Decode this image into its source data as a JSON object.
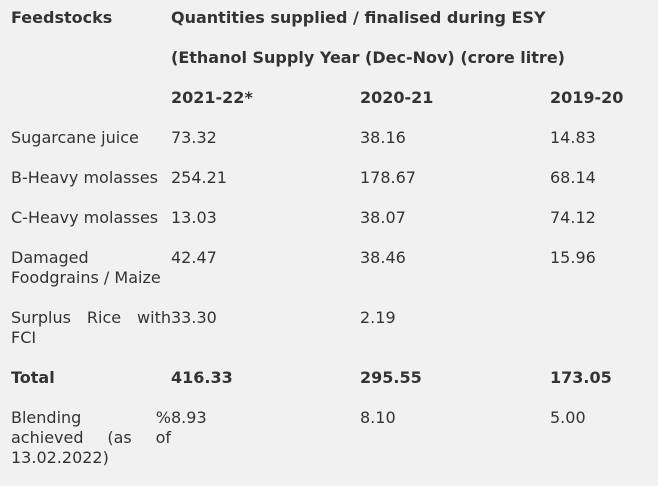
{
  "header": {
    "label": "Feedstocks",
    "title": "Quantities supplied / finalised during ESY",
    "subtitle": "(Ethanol Supply Year (Dec-Nov) (crore litre)",
    "years": [
      "2021-22*",
      "2020-21",
      "2019-20"
    ]
  },
  "table": {
    "rows": [
      [
        "Sugarcane juice",
        "73.32",
        "38.16",
        "14.83"
      ],
      [
        "B-Heavy molasses",
        "254.21",
        "178.67",
        "68.14"
      ],
      [
        "C-Heavy molasses",
        "13.03",
        "38.07",
        "74.12"
      ],
      [
        "Damaged Foodgrains / Maize",
        "42.47",
        "38.46",
        "15.96"
      ],
      [
        "Surplus Rice with FCI",
        "33.30",
        "2.19"
      ],
      [
        "Total",
        "416.33",
        "295.55",
        "173.05"
      ],
      [
        "Blending % achieved (as of 13.02.2022)",
        "8.93",
        "8.10",
        "5.00"
      ]
    ]
  }
}
